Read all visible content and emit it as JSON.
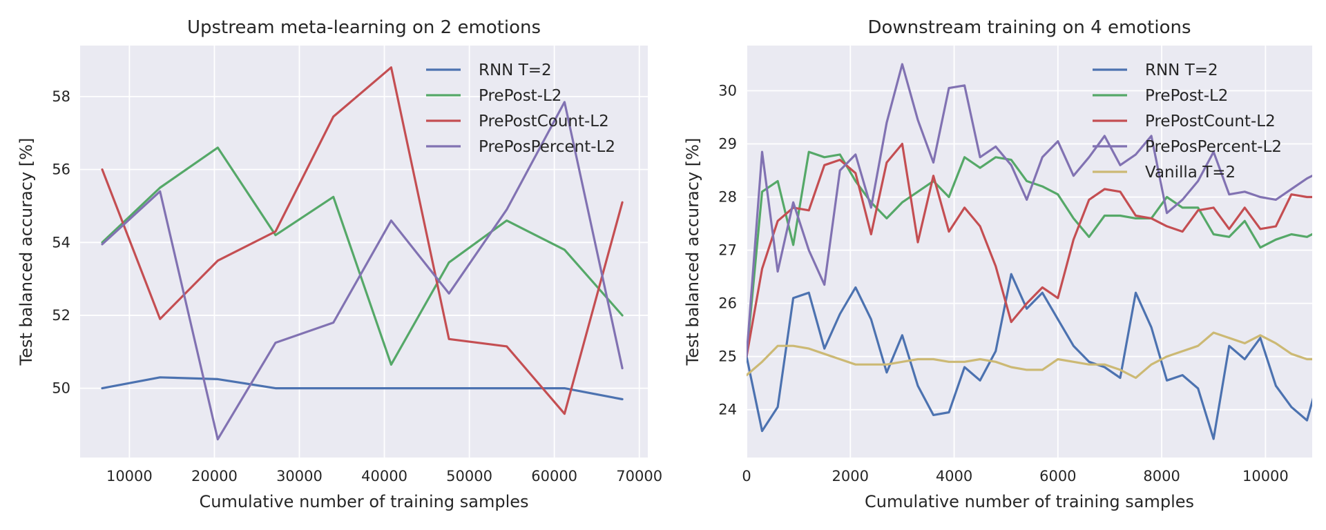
{
  "chart_data": [
    {
      "type": "line",
      "title": "Upstream meta-learning on 2 emotions",
      "xlabel": "Cumulative number of training samples",
      "ylabel": "Test balanced accuracy [%]",
      "xlim": [
        4200,
        71000
      ],
      "ylim": [
        48.1,
        59.4
      ],
      "xticks": [
        10000,
        20000,
        30000,
        40000,
        50000,
        60000,
        70000
      ],
      "yticks": [
        50,
        52,
        54,
        56,
        58
      ],
      "grid": true,
      "legend_position": "upper-right",
      "x": [
        6800,
        13600,
        20400,
        27200,
        34000,
        40800,
        47600,
        54400,
        61200,
        68000
      ],
      "series": [
        {
          "name": "RNN T=2",
          "color": "#4c72b0",
          "values": [
            50.0,
            50.3,
            50.25,
            50.0,
            50.0,
            50.0,
            50.0,
            50.0,
            50.0,
            49.7
          ]
        },
        {
          "name": "PrePost-L2",
          "color": "#55a868",
          "values": [
            54.0,
            55.5,
            56.6,
            54.2,
            55.25,
            50.65,
            53.45,
            54.6,
            53.8,
            52.0
          ]
        },
        {
          "name": "PrePostCount-L2",
          "color": "#c44e52",
          "values": [
            56.0,
            51.9,
            53.5,
            54.3,
            57.45,
            58.8,
            51.35,
            51.15,
            49.3,
            55.1
          ]
        },
        {
          "name": "PrePosPercent-L2",
          "color": "#8172b2",
          "values": [
            53.95,
            55.4,
            48.6,
            51.25,
            51.8,
            54.6,
            52.6,
            54.9,
            57.85,
            50.55
          ]
        }
      ]
    },
    {
      "type": "line",
      "title": "Downstream training on 4 emotions",
      "xlabel": "Cumulative number of training samples",
      "ylabel": "Test balanced accuracy [%]",
      "xlim": [
        0,
        10900
      ],
      "ylim": [
        23.1,
        30.85
      ],
      "xticks": [
        0,
        2000,
        4000,
        6000,
        8000,
        10000
      ],
      "yticks": [
        24,
        25,
        26,
        27,
        28,
        29,
        30
      ],
      "grid": true,
      "legend_position": "upper-right",
      "x": [
        0,
        300,
        600,
        900,
        1200,
        1500,
        1800,
        2100,
        2400,
        2700,
        3000,
        3300,
        3600,
        3900,
        4200,
        4500,
        4800,
        5100,
        5400,
        5700,
        6000,
        6300,
        6600,
        6900,
        7200,
        7500,
        7800,
        8100,
        8400,
        8700,
        9000,
        9300,
        9600,
        9900,
        10200,
        10500,
        10800,
        11000
      ],
      "series": [
        {
          "name": "RNN T=2",
          "color": "#4c72b0",
          "values": [
            25.0,
            23.6,
            24.05,
            26.1,
            26.2,
            25.15,
            25.8,
            26.3,
            25.7,
            24.7,
            25.4,
            24.45,
            23.9,
            23.95,
            24.8,
            24.55,
            25.1,
            26.55,
            25.9,
            26.2,
            25.7,
            25.2,
            24.9,
            24.8,
            24.6,
            26.2,
            25.55,
            24.55,
            24.65,
            24.4,
            23.45,
            25.2,
            24.95,
            25.35,
            24.45,
            24.05,
            23.8,
            24.5
          ]
        },
        {
          "name": "PrePost-L2",
          "color": "#55a868",
          "values": [
            25.0,
            28.1,
            28.3,
            27.1,
            28.85,
            28.75,
            28.8,
            28.3,
            27.9,
            27.6,
            27.9,
            28.1,
            28.3,
            28.0,
            28.75,
            28.55,
            28.75,
            28.7,
            28.3,
            28.2,
            28.05,
            27.6,
            27.25,
            27.65,
            27.65,
            27.6,
            27.6,
            28.0,
            27.8,
            27.8,
            27.3,
            27.25,
            27.55,
            27.05,
            27.2,
            27.3,
            27.25,
            27.35
          ]
        },
        {
          "name": "PrePostCount-L2",
          "color": "#c44e52",
          "values": [
            25.0,
            26.65,
            27.55,
            27.8,
            27.75,
            28.6,
            28.7,
            28.45,
            27.3,
            28.65,
            29.0,
            27.15,
            28.4,
            27.35,
            27.8,
            27.45,
            26.7,
            25.65,
            26.0,
            26.3,
            26.1,
            27.2,
            27.95,
            28.15,
            28.1,
            27.65,
            27.6,
            27.45,
            27.35,
            27.75,
            27.8,
            27.4,
            27.8,
            27.4,
            27.45,
            28.05,
            28.0,
            28.0
          ]
        },
        {
          "name": "PrePosPercent-L2",
          "color": "#8172b2",
          "values": [
            25.0,
            28.85,
            26.6,
            27.9,
            27.0,
            26.35,
            28.5,
            28.8,
            27.8,
            29.4,
            30.5,
            29.45,
            28.65,
            30.05,
            30.1,
            28.75,
            28.95,
            28.6,
            27.95,
            28.75,
            29.05,
            28.4,
            28.75,
            29.15,
            28.6,
            28.8,
            29.15,
            27.7,
            27.95,
            28.3,
            28.85,
            28.05,
            28.1,
            28.0,
            27.95,
            28.15,
            28.35,
            28.45
          ]
        },
        {
          "name": "Vanilla T=2",
          "color": "#ccb974",
          "values": [
            24.65,
            24.9,
            25.2,
            25.2,
            25.15,
            25.05,
            24.95,
            24.85,
            24.85,
            24.85,
            24.9,
            24.95,
            24.95,
            24.9,
            24.9,
            24.95,
            24.9,
            24.8,
            24.75,
            24.75,
            24.95,
            24.9,
            24.85,
            24.85,
            24.75,
            24.6,
            24.85,
            25.0,
            25.1,
            25.2,
            25.45,
            25.35,
            25.25,
            25.4,
            25.25,
            25.05,
            24.95,
            24.95
          ]
        }
      ]
    }
  ]
}
